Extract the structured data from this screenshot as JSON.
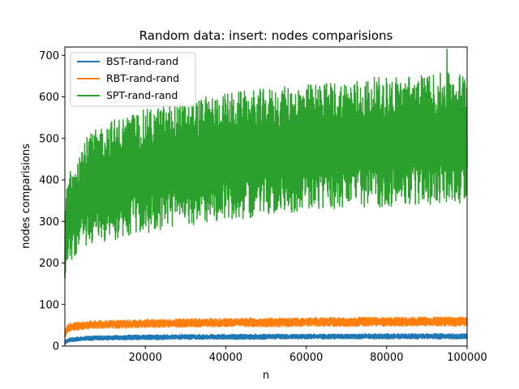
{
  "chart_data": {
    "type": "line",
    "title": "Random data: insert: nodes comparisions",
    "xlabel": "n",
    "ylabel": "nodes comparisions",
    "xlim": [
      0,
      100000
    ],
    "ylim": [
      0,
      720
    ],
    "xticks": [
      20000,
      40000,
      60000,
      80000,
      100000
    ],
    "xtick_labels": [
      "20000",
      "40000",
      "60000",
      "80000",
      "100000"
    ],
    "yticks": [
      0,
      100,
      200,
      300,
      400,
      500,
      600,
      700
    ],
    "ytick_labels": [
      "0",
      "100",
      "200",
      "300",
      "400",
      "500",
      "600",
      "700"
    ],
    "grid": false,
    "legend_position": "top-left",
    "series": [
      {
        "name": "BST-rand-rand",
        "color": "#1f77b4",
        "x": [
          0,
          1000,
          5000,
          10000,
          20000,
          30000,
          40000,
          50000,
          60000,
          70000,
          80000,
          90000,
          100000
        ],
        "low": [
          4,
          10,
          13,
          14,
          15,
          16,
          16,
          16,
          17,
          17,
          17,
          17,
          17
        ],
        "high": [
          12,
          20,
          24,
          25,
          27,
          28,
          28,
          29,
          29,
          29,
          30,
          30,
          30
        ]
      },
      {
        "name": "RBT-rand-rand",
        "color": "#ff7f0e",
        "x": [
          0,
          1000,
          5000,
          10000,
          20000,
          30000,
          40000,
          50000,
          60000,
          70000,
          80000,
          90000,
          100000
        ],
        "low": [
          18,
          35,
          40,
          42,
          44,
          45,
          46,
          46,
          47,
          47,
          47,
          48,
          48
        ],
        "high": [
          40,
          55,
          60,
          62,
          64,
          66,
          67,
          68,
          68,
          69,
          69,
          70,
          70
        ]
      },
      {
        "name": "SPT-rand-rand",
        "color": "#2ca02c",
        "x": [
          0,
          1000,
          5000,
          10000,
          20000,
          30000,
          40000,
          50000,
          60000,
          70000,
          80000,
          90000,
          100000
        ],
        "low": [
          140,
          200,
          240,
          250,
          270,
          290,
          300,
          315,
          325,
          330,
          335,
          340,
          345
        ],
        "high": [
          340,
          430,
          500,
          540,
          570,
          590,
          610,
          620,
          630,
          640,
          650,
          655,
          660
        ],
        "peak": {
          "x": 95000,
          "y": 715
        }
      }
    ]
  }
}
